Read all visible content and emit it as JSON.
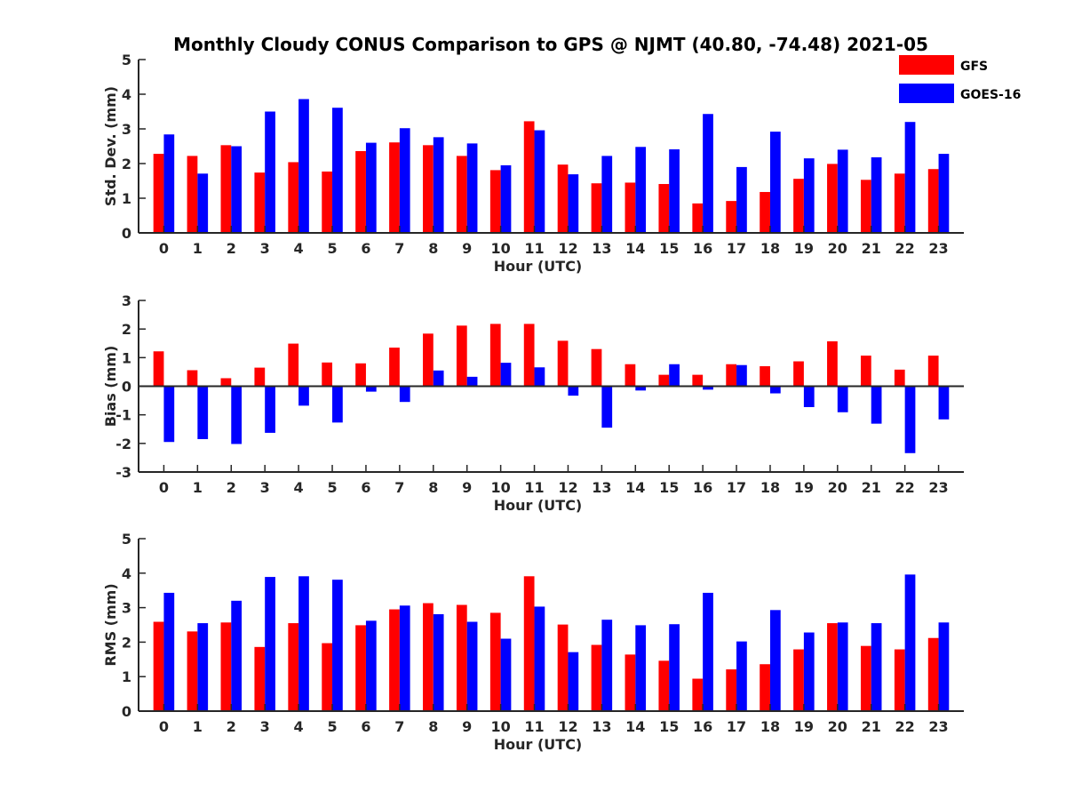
{
  "title": "Monthly Cloudy CONUS Comparison to GPS @ NJMT (40.80, -74.48) 2021-05",
  "legend": {
    "entries": [
      {
        "label": "GFS",
        "color": "#ff0000"
      },
      {
        "label": "GOES-16",
        "color": "#0000ff"
      }
    ],
    "placement": "top-right"
  },
  "chart_data": [
    {
      "type": "bar",
      "xlabel": "Hour (UTC)",
      "ylabel": "Std. Dev. (mm)",
      "ylim": [
        0,
        5
      ],
      "yticks": [
        "0",
        "1",
        "2",
        "3",
        "4",
        "5"
      ],
      "categories": [
        "0",
        "1",
        "2",
        "3",
        "4",
        "5",
        "6",
        "7",
        "8",
        "9",
        "10",
        "11",
        "12",
        "13",
        "14",
        "15",
        "16",
        "17",
        "18",
        "19",
        "20",
        "21",
        "22",
        "23"
      ],
      "series": [
        {
          "name": "GFS",
          "color": "#ff0000",
          "values": [
            2.28,
            2.22,
            2.53,
            1.74,
            2.04,
            1.77,
            2.36,
            2.61,
            2.53,
            2.22,
            1.81,
            3.22,
            1.97,
            1.43,
            1.45,
            1.41,
            0.85,
            0.92,
            1.18,
            1.56,
            1.99,
            1.53,
            1.71,
            1.84
          ]
        },
        {
          "name": "GOES-16",
          "color": "#0000ff",
          "values": [
            2.84,
            1.71,
            2.5,
            3.5,
            3.86,
            3.61,
            2.6,
            3.02,
            2.76,
            2.58,
            1.95,
            2.96,
            1.69,
            2.22,
            2.48,
            2.41,
            3.43,
            1.9,
            2.92,
            2.15,
            2.4,
            2.18,
            3.2,
            2.28
          ]
        }
      ]
    },
    {
      "type": "bar",
      "xlabel": "Hour (UTC)",
      "ylabel": "Bias (mm)",
      "ylim": [
        -3,
        3
      ],
      "yticks": [
        "-3",
        "-2",
        "-1",
        "0",
        "1",
        "2",
        "3"
      ],
      "categories": [
        "0",
        "1",
        "2",
        "3",
        "4",
        "5",
        "6",
        "7",
        "8",
        "9",
        "10",
        "11",
        "12",
        "13",
        "14",
        "15",
        "16",
        "17",
        "18",
        "19",
        "20",
        "21",
        "22",
        "23"
      ],
      "series": [
        {
          "name": "GFS",
          "color": "#ff0000",
          "values": [
            1.22,
            0.56,
            0.28,
            0.65,
            1.49,
            0.83,
            0.8,
            1.35,
            1.84,
            2.12,
            2.18,
            2.18,
            1.59,
            1.3,
            0.77,
            0.4,
            0.4,
            0.77,
            0.7,
            0.87,
            1.57,
            1.07,
            0.58,
            1.07
          ]
        },
        {
          "name": "GOES-16",
          "color": "#0000ff",
          "values": [
            -1.95,
            -1.85,
            -2.02,
            -1.63,
            -0.68,
            -1.27,
            -0.19,
            -0.55,
            0.55,
            0.33,
            0.82,
            0.66,
            -0.33,
            -1.45,
            -0.15,
            0.77,
            -0.12,
            0.74,
            -0.25,
            -0.73,
            -0.91,
            -1.31,
            -2.34,
            -1.16
          ]
        }
      ]
    },
    {
      "type": "bar",
      "xlabel": "Hour (UTC)",
      "ylabel": "RMS (mm)",
      "ylim": [
        0,
        5
      ],
      "yticks": [
        "0",
        "1",
        "2",
        "3",
        "4",
        "5"
      ],
      "categories": [
        "0",
        "1",
        "2",
        "3",
        "4",
        "5",
        "6",
        "7",
        "8",
        "9",
        "10",
        "11",
        "12",
        "13",
        "14",
        "15",
        "16",
        "17",
        "18",
        "19",
        "20",
        "21",
        "22",
        "23"
      ],
      "series": [
        {
          "name": "GFS",
          "color": "#ff0000",
          "values": [
            2.59,
            2.31,
            2.57,
            1.86,
            2.55,
            1.97,
            2.49,
            2.95,
            3.13,
            3.08,
            2.85,
            3.91,
            2.51,
            1.92,
            1.64,
            1.46,
            0.94,
            1.21,
            1.36,
            1.79,
            2.55,
            1.89,
            1.79,
            2.12
          ]
        },
        {
          "name": "GOES-16",
          "color": "#0000ff",
          "values": [
            3.43,
            2.55,
            3.2,
            3.89,
            3.91,
            3.81,
            2.62,
            3.06,
            2.81,
            2.59,
            2.1,
            3.03,
            1.71,
            2.65,
            2.49,
            2.52,
            3.43,
            2.02,
            2.93,
            2.28,
            2.57,
            2.55,
            3.96,
            2.57
          ]
        }
      ]
    }
  ]
}
